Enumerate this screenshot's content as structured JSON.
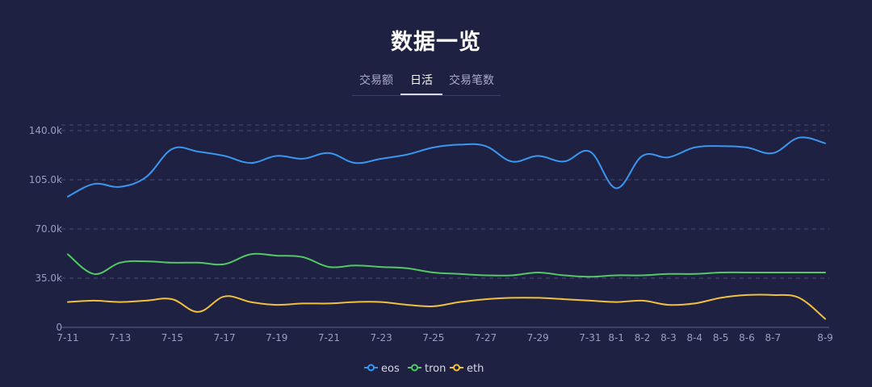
{
  "page": {
    "title": "数据一览",
    "tabs": [
      {
        "label": "交易额",
        "active": false
      },
      {
        "label": "日活",
        "active": true
      },
      {
        "label": "交易笔数",
        "active": false
      }
    ]
  },
  "colors": {
    "background": "#1f2142",
    "eos": "#3a97f0",
    "tron": "#52c965",
    "eth": "#efc13e",
    "grid": "#4a4d78",
    "axis_text": "#9b9dc0"
  },
  "chart_data": {
    "type": "line",
    "x": [
      "7-11",
      "7-12",
      "7-13",
      "7-14",
      "7-15",
      "7-16",
      "7-17",
      "7-18",
      "7-19",
      "7-20",
      "7-21",
      "7-22",
      "7-23",
      "7-24",
      "7-25",
      "7-26",
      "7-27",
      "7-28",
      "7-29",
      "7-30",
      "7-31",
      "8-1",
      "8-2",
      "8-3",
      "8-4",
      "8-5",
      "8-6",
      "8-7",
      "8-8",
      "8-9"
    ],
    "x_tick_labels": [
      "7-11",
      "7-13",
      "7-15",
      "7-17",
      "7-19",
      "7-21",
      "7-23",
      "7-25",
      "7-27",
      "7-29",
      "7-31",
      "8-1",
      "8-2",
      "8-3",
      "8-4",
      "8-5",
      "8-6",
      "8-7",
      "8-9"
    ],
    "y_tick_labels": [
      "0",
      "35.0k",
      "70.0k",
      "105.0k",
      "140.0k"
    ],
    "ylim": [
      0,
      140000
    ],
    "grid": true,
    "legend_position": "bottom",
    "series": [
      {
        "name": "eos",
        "values": [
          93000,
          102000,
          100000,
          107000,
          127000,
          125000,
          122000,
          117000,
          122000,
          120000,
          124000,
          117000,
          120000,
          123000,
          128000,
          130000,
          129000,
          118000,
          122000,
          118000,
          125000,
          99000,
          122000,
          121000,
          128000,
          129000,
          128000,
          124000,
          135000,
          131000
        ]
      },
      {
        "name": "tron",
        "values": [
          52000,
          38000,
          46000,
          47000,
          46000,
          46000,
          45000,
          52000,
          51000,
          50000,
          43000,
          44000,
          43000,
          42000,
          39000,
          38000,
          37000,
          37000,
          39000,
          37000,
          36000,
          37000,
          37000,
          38000,
          38000,
          39000,
          39000,
          39000,
          39000,
          39000
        ]
      },
      {
        "name": "eth",
        "values": [
          18000,
          19000,
          18000,
          19000,
          20000,
          11000,
          22000,
          18000,
          16000,
          17000,
          17000,
          18000,
          18000,
          16000,
          15000,
          18000,
          20000,
          21000,
          21000,
          20000,
          19000,
          18000,
          19000,
          16000,
          17000,
          21000,
          23000,
          23000,
          21000,
          6000
        ]
      }
    ]
  }
}
